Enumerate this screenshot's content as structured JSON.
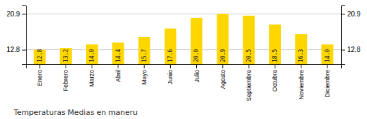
{
  "chart_data": {
    "type": "bar",
    "title": "Temperaturas Medias en maneru",
    "categories": [
      "Enero",
      "Febrero",
      "Marzo",
      "Abril",
      "Mayo",
      "Junio",
      "Julio",
      "Agosto",
      "Septiembre",
      "Octubre",
      "Noviembre",
      "Diciembre"
    ],
    "values": [
      12.8,
      13.2,
      14.0,
      14.4,
      15.7,
      17.6,
      20.0,
      20.9,
      20.5,
      18.5,
      16.3,
      14.0
    ],
    "value_labels": [
      "12.8",
      "13.2",
      "14.0",
      "14.4",
      "15.7",
      "17.6",
      "20.0",
      "20.9",
      "20.5",
      "18.5",
      "16.3",
      "14.0"
    ],
    "color": "#FFD700",
    "ylim": [
      9.5,
      22.8
    ],
    "yticks": [
      12.8,
      20.9
    ],
    "y2lim": [
      9.5,
      22.8
    ],
    "y2ticks": [
      12.8,
      20.9
    ],
    "grid": true,
    "data_labels": true
  }
}
